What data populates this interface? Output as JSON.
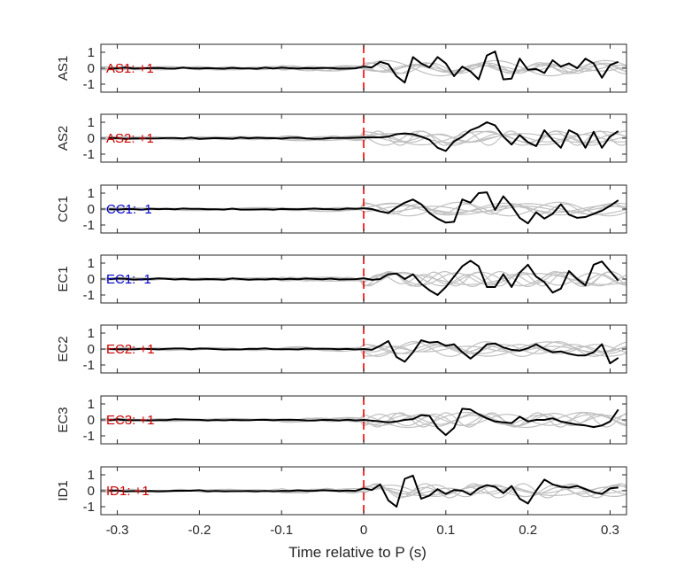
{
  "chart_data": {
    "type": "line",
    "xlabel": "Time relative to P (s)",
    "xlim": [
      -0.32,
      0.32
    ],
    "xticks": [
      -0.3,
      -0.2,
      -0.1,
      0,
      0.1,
      0.2,
      0.3
    ],
    "xtick_labels": [
      "-0.3",
      "-0.2",
      "-0.1",
      "0",
      "0.1",
      "0.2",
      "0.3"
    ],
    "ylim": [
      -1.5,
      1.5
    ],
    "yticks": [
      1,
      0,
      -1
    ],
    "ytick_labels": [
      "1",
      "0",
      "-1"
    ],
    "marker": {
      "x": 0,
      "color": "#ff0000",
      "style": "dashed"
    },
    "colors": {
      "positive": "#cc0000",
      "negative": "#0000cc",
      "main_trace": "#000000",
      "background_traces": "#c0c0c0"
    },
    "panels": [
      {
        "station": "AS1",
        "polarity_label": "AS1: +1",
        "polarity_sign": "+",
        "x": [
          0,
          0.01,
          0.02,
          0.03,
          0.04,
          0.05,
          0.06,
          0.07,
          0.08,
          0.09,
          0.1,
          0.11,
          0.12,
          0.13,
          0.14,
          0.15,
          0.16,
          0.17,
          0.18,
          0.19,
          0.2,
          0.21,
          0.22,
          0.23,
          0.24,
          0.25,
          0.26,
          0.27,
          0.28,
          0.29,
          0.3,
          0.31
        ],
        "y": [
          0.1,
          0.05,
          0.4,
          0.25,
          -0.5,
          -0.9,
          0.7,
          0.3,
          0.05,
          0.7,
          0.3,
          -0.5,
          0.1,
          -0.2,
          -0.7,
          0.8,
          1.05,
          -0.7,
          -0.65,
          0.6,
          -0.1,
          -0.05,
          -0.3,
          0.5,
          0.1,
          0.3,
          0.0,
          0.6,
          0.3,
          -0.6,
          0.2,
          0.4
        ]
      },
      {
        "station": "AS2",
        "polarity_label": "AS2: +1",
        "polarity_sign": "+",
        "x": [
          0,
          0.01,
          0.02,
          0.03,
          0.04,
          0.05,
          0.06,
          0.07,
          0.08,
          0.09,
          0.1,
          0.11,
          0.12,
          0.13,
          0.14,
          0.15,
          0.16,
          0.17,
          0.18,
          0.19,
          0.2,
          0.21,
          0.22,
          0.23,
          0.24,
          0.25,
          0.26,
          0.27,
          0.28,
          0.29,
          0.3,
          0.31
        ],
        "y": [
          0.05,
          0.05,
          0.05,
          0.1,
          0.25,
          0.3,
          0.25,
          0.1,
          -0.1,
          -0.6,
          -0.8,
          -0.2,
          0.1,
          0.5,
          0.7,
          1.0,
          0.8,
          0.1,
          -0.4,
          0.2,
          -0.25,
          -0.5,
          0.5,
          -0.1,
          -0.6,
          0.5,
          0.25,
          -0.6,
          0.4,
          -0.6,
          0.1,
          0.45
        ]
      },
      {
        "station": "CC1",
        "polarity_label": "CC1: -1",
        "polarity_sign": "-",
        "x": [
          0,
          0.01,
          0.02,
          0.03,
          0.04,
          0.05,
          0.06,
          0.07,
          0.08,
          0.09,
          0.1,
          0.11,
          0.12,
          0.13,
          0.14,
          0.15,
          0.16,
          0.17,
          0.18,
          0.19,
          0.2,
          0.21,
          0.22,
          0.23,
          0.24,
          0.25,
          0.26,
          0.27,
          0.28,
          0.29,
          0.3,
          0.31
        ],
        "y": [
          0.05,
          0.0,
          -0.15,
          -0.25,
          0.1,
          0.4,
          0.6,
          0.3,
          -0.25,
          -0.6,
          -0.85,
          -0.8,
          0.6,
          0.4,
          1.0,
          1.05,
          -0.05,
          0.8,
          0.2,
          -0.55,
          -0.9,
          -0.2,
          -0.6,
          -0.3,
          0.3,
          -0.35,
          -0.55,
          -0.5,
          -0.3,
          -0.1,
          0.2,
          0.55
        ]
      },
      {
        "station": "EC1",
        "polarity_label": "EC1: -1",
        "polarity_sign": "-",
        "x": [
          0,
          0.01,
          0.02,
          0.03,
          0.04,
          0.05,
          0.06,
          0.07,
          0.08,
          0.09,
          0.1,
          0.11,
          0.12,
          0.13,
          0.14,
          0.15,
          0.16,
          0.17,
          0.18,
          0.19,
          0.2,
          0.21,
          0.22,
          0.23,
          0.24,
          0.25,
          0.26,
          0.27,
          0.28,
          0.29,
          0.3,
          0.31
        ],
        "y": [
          0.05,
          -0.05,
          0.0,
          0.3,
          0.35,
          0.0,
          0.3,
          -0.3,
          -0.7,
          -1.0,
          -0.5,
          0.15,
          0.8,
          1.15,
          0.8,
          -0.5,
          -0.5,
          0.3,
          -0.5,
          0.4,
          0.9,
          0.15,
          -0.2,
          -0.85,
          -0.6,
          0.5,
          0.0,
          -0.4,
          0.9,
          1.1,
          0.5,
          -0.1
        ]
      },
      {
        "station": "EC2",
        "polarity_label": "EC2: +1",
        "polarity_sign": "+",
        "x": [
          0,
          0.01,
          0.02,
          0.03,
          0.04,
          0.05,
          0.06,
          0.07,
          0.08,
          0.09,
          0.1,
          0.11,
          0.12,
          0.13,
          0.14,
          0.15,
          0.16,
          0.17,
          0.18,
          0.19,
          0.2,
          0.21,
          0.22,
          0.23,
          0.24,
          0.25,
          0.26,
          0.27,
          0.28,
          0.29,
          0.3,
          0.31
        ],
        "y": [
          0.0,
          -0.05,
          0.2,
          0.5,
          -0.5,
          -0.8,
          -0.2,
          0.55,
          0.4,
          0.45,
          0.2,
          0.3,
          -0.2,
          -0.6,
          -0.2,
          0.3,
          0.35,
          0.1,
          -0.05,
          -0.1,
          0.05,
          0.3,
          0.0,
          -0.2,
          -0.15,
          -0.3,
          -0.4,
          -0.4,
          -0.2,
          0.3,
          -0.9,
          -0.55
        ]
      },
      {
        "station": "EC3",
        "polarity_label": "EC3: +1",
        "polarity_sign": "+",
        "x": [
          0,
          0.01,
          0.02,
          0.03,
          0.04,
          0.05,
          0.06,
          0.07,
          0.08,
          0.09,
          0.1,
          0.11,
          0.12,
          0.13,
          0.14,
          0.15,
          0.16,
          0.17,
          0.18,
          0.19,
          0.2,
          0.21,
          0.22,
          0.23,
          0.24,
          0.25,
          0.26,
          0.27,
          0.28,
          0.29,
          0.3,
          0.31
        ],
        "y": [
          0.0,
          -0.05,
          -0.1,
          -0.15,
          -0.1,
          0.0,
          0.05,
          0.3,
          0.25,
          -0.5,
          -0.95,
          -0.5,
          0.7,
          0.65,
          0.35,
          0.1,
          -0.1,
          -0.15,
          -0.2,
          0.2,
          -0.1,
          0.0,
          0.0,
          0.1,
          -0.1,
          -0.2,
          -0.3,
          -0.35,
          -0.45,
          -0.35,
          -0.1,
          0.65
        ]
      },
      {
        "station": "ID1",
        "polarity_label": "ID1: +1",
        "polarity_sign": "+",
        "x": [
          0,
          0.01,
          0.02,
          0.03,
          0.04,
          0.05,
          0.06,
          0.07,
          0.08,
          0.09,
          0.1,
          0.11,
          0.12,
          0.13,
          0.14,
          0.15,
          0.16,
          0.17,
          0.18,
          0.19,
          0.2,
          0.21,
          0.22,
          0.23,
          0.24,
          0.25,
          0.26,
          0.27,
          0.28,
          0.29,
          0.3,
          0.31
        ],
        "y": [
          0.15,
          0.05,
          0.4,
          -0.6,
          -1.0,
          0.75,
          0.95,
          -0.5,
          -0.3,
          0.1,
          -0.2,
          0.05,
          0.0,
          -0.25,
          0.15,
          0.35,
          0.25,
          -0.15,
          0.3,
          -0.5,
          -0.8,
          0.0,
          0.7,
          0.4,
          0.25,
          0.2,
          0.3,
          0.1,
          -0.1,
          -0.2,
          0.15,
          0.2
        ]
      }
    ]
  }
}
